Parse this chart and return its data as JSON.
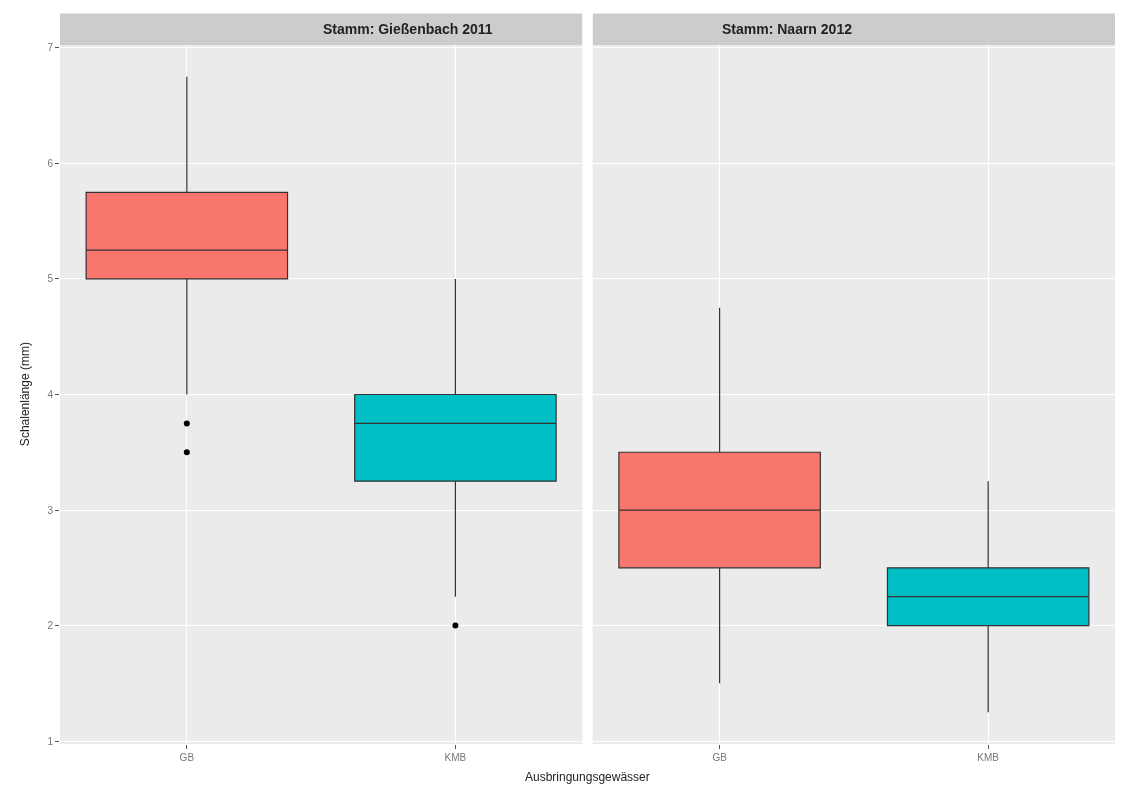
{
  "chart_data": [
    {
      "type": "box",
      "title": "Stamm: Gießenbach 2011",
      "xlabel": "Ausbringungsgewässer",
      "ylabel": "Schalenlänge (mm)",
      "categories": [
        "GB",
        "KMB"
      ],
      "colors": [
        "#f8766d",
        "#00bfc4"
      ],
      "ylim": [
        0.975,
        7.025
      ],
      "yticks": [
        1,
        2,
        3,
        4,
        5,
        6,
        7
      ],
      "grid": true,
      "boxes": [
        {
          "low": 4.0,
          "q1": 5.0,
          "median": 5.25,
          "q3": 5.75,
          "high": 6.75,
          "outliers": [
            3.75,
            3.5
          ]
        },
        {
          "low": 2.25,
          "q1": 3.25,
          "median": 3.75,
          "q3": 4.0,
          "high": 5.0,
          "outliers": [
            2.0
          ]
        }
      ]
    },
    {
      "type": "box",
      "title": "Stamm: Naarn 2012",
      "categories": [
        "GB",
        "KMB"
      ],
      "colors": [
        "#f8766d",
        "#00bfc4"
      ],
      "ylim": [
        0.975,
        7.025
      ],
      "yticks": [
        1,
        2,
        3,
        4,
        5,
        6,
        7
      ],
      "grid": true,
      "tick_labels": "x",
      "boxes": [
        {
          "low": 1.5,
          "q1": 2.5,
          "median": 3.0,
          "q3": 3.5,
          "high": 4.75
        },
        {
          "low": 1.25,
          "q1": 2.0,
          "median": 2.25,
          "q3": 2.5,
          "high": 3.25
        }
      ]
    }
  ]
}
